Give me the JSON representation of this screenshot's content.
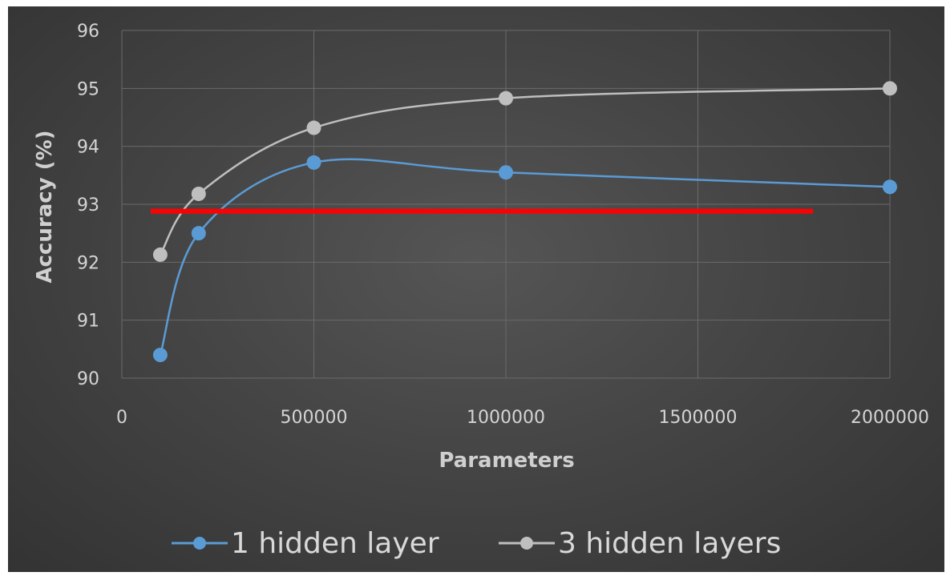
{
  "chart_data": {
    "type": "line",
    "xlabel": "Parameters",
    "ylabel": "Accuracy (%)",
    "xlim": [
      0,
      2000000
    ],
    "ylim": [
      90,
      96
    ],
    "x_ticks": [
      "0",
      "500000",
      "1000000",
      "1500000",
      "2000000"
    ],
    "y_ticks": [
      "90",
      "91",
      "92",
      "93",
      "94",
      "95",
      "96"
    ],
    "grid": true,
    "smooth_lines": true,
    "legend_position": "bottom",
    "series": [
      {
        "name": "1 hidden layer",
        "color": "#5b9bd5",
        "x": [
          100000,
          200000,
          500000,
          1000000,
          2000000
        ],
        "y": [
          90.4,
          92.5,
          93.72,
          93.55,
          93.3
        ]
      },
      {
        "name": "3 hidden layers",
        "color": "#bfbfbf",
        "x": [
          100000,
          200000,
          500000,
          1000000,
          2000000
        ],
        "y": [
          92.13,
          93.18,
          94.32,
          94.83,
          95.0
        ]
      }
    ],
    "reference_line": {
      "color": "#ff0000",
      "x": [
        75000,
        1800000
      ],
      "y": [
        92.88,
        92.88
      ]
    }
  }
}
